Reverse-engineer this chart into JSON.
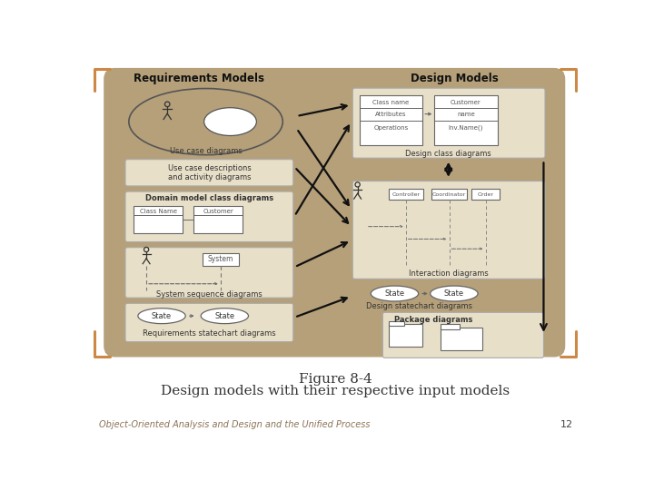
{
  "bg_color": "#ffffff",
  "main_bg": "#b5a07a",
  "panel_bg": "#e8dfc8",
  "title_text": "Figure 8-4\nDesign models with their respective input models",
  "footer_text": "Object-Oriented Analysis and Design and the Unified Process",
  "page_num": "12",
  "footer_color": "#8b7355",
  "title_color": "#333333",
  "req_title": "Requirements Models",
  "des_title": "Design Models",
  "corner_color": "#cc8844",
  "panel_ec": "#aaaaaa",
  "arrow_color": "#111111",
  "line_color": "#555555",
  "text_dark": "#222222"
}
